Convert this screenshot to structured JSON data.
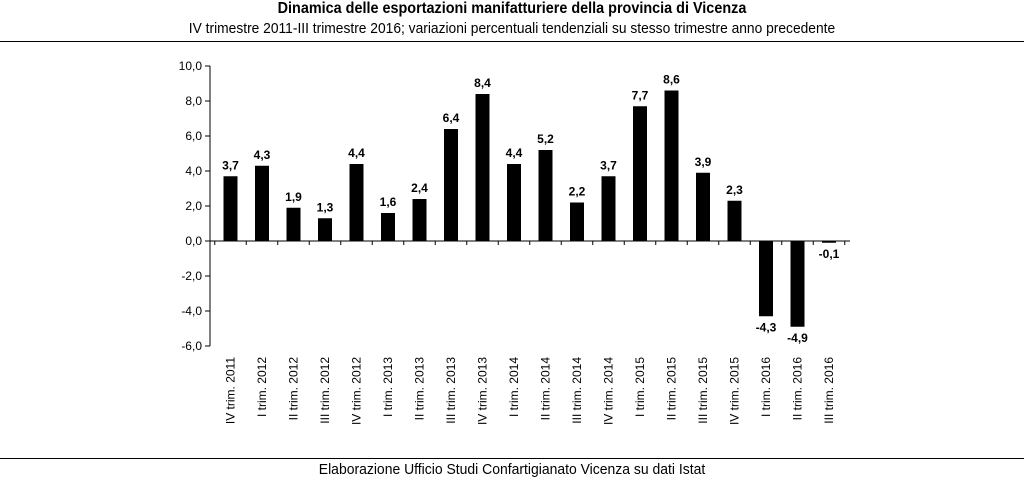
{
  "header": {
    "title": "Dinamica delle esportazioni manifatturiere della provincia di Vicenza",
    "subtitle": "IV trimestre 2011-III trimestre 2016; variazioni percentuali tendenziali su stesso trimestre anno precedente"
  },
  "footer": {
    "source": "Elaborazione Ufficio Studi Confartigianato Vicenza su dati Istat"
  },
  "chart_data": {
    "type": "bar",
    "title": "Dinamica delle esportazioni manifatturiere della provincia di Vicenza",
    "subtitle": "IV trimestre 2011-III trimestre 2016; variazioni percentuali tendenziali su stesso trimestre anno precedente",
    "xlabel": "",
    "ylabel": "",
    "categories": [
      "IV trim. 2011",
      "I trim. 2012",
      "II trim. 2012",
      "III trim. 2012",
      "IV trim. 2012",
      "I trim. 2013",
      "II trim. 2013",
      "III trim. 2013",
      "IV trim. 2013",
      "I trim. 2014",
      "II trim. 2014",
      "III trim. 2014",
      "IV trim. 2014",
      "I trim. 2015",
      "II trim. 2015",
      "III trim. 2015",
      "IV trim. 2015",
      "I trim. 2016",
      "II trim. 2016",
      "III trim. 2016"
    ],
    "values": [
      3.7,
      4.3,
      1.9,
      1.3,
      4.4,
      1.6,
      2.4,
      6.4,
      8.4,
      4.4,
      5.2,
      2.2,
      3.7,
      7.7,
      8.6,
      3.9,
      2.3,
      -4.3,
      -4.9,
      -0.1
    ],
    "value_labels": [
      "3,7",
      "4,3",
      "1,9",
      "1,3",
      "4,4",
      "1,6",
      "2,4",
      "6,4",
      "8,4",
      "4,4",
      "5,2",
      "2,2",
      "3,7",
      "7,7",
      "8,6",
      "3,9",
      "2,3",
      "-4,3",
      "-4,9",
      "-0,1"
    ],
    "ylim": [
      -6.0,
      10.0
    ],
    "yticks": [
      10.0,
      8.0,
      6.0,
      4.0,
      2.0,
      0.0,
      -2.0,
      -4.0,
      -6.0
    ],
    "ytick_labels": [
      "10,0",
      "8,0",
      "6,0",
      "4,0",
      "2,0",
      "0,0",
      "-2,0",
      "-4,0",
      "-6,0"
    ],
    "grid": false,
    "legend": "none",
    "bar_color": "#000000"
  }
}
